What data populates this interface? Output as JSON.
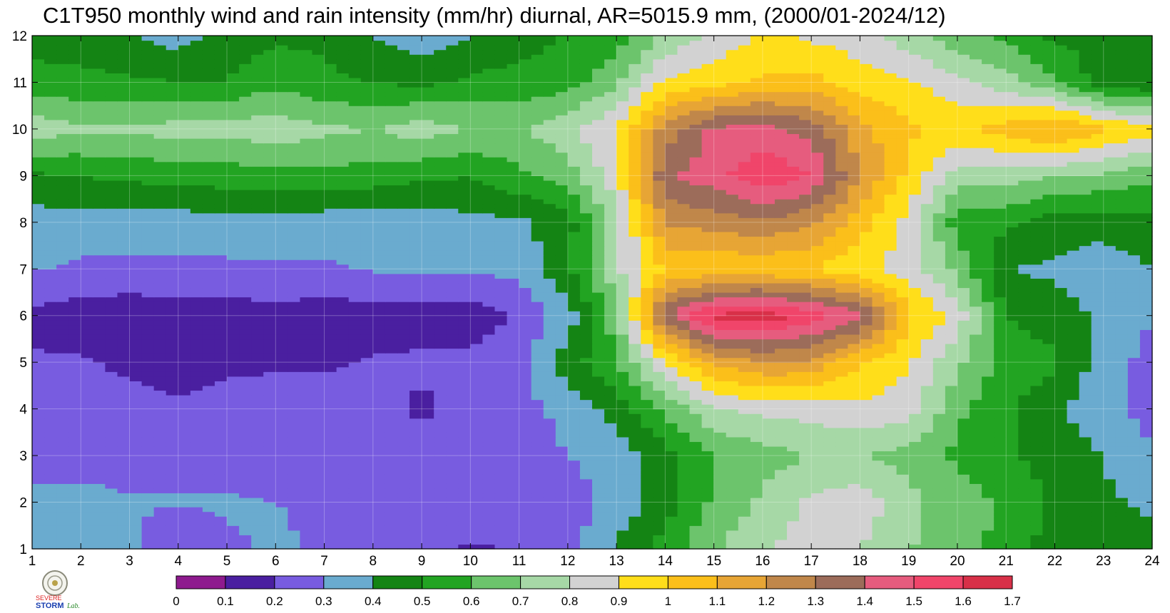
{
  "title": "C1T950 monthly wind and rain intensity (mm/hr) diurnal, AR=5015.9 mm, (2000/01-2024/12)",
  "logo": {
    "text_top": "SEVERE",
    "text_bottom": "STORM",
    "text_lab": "Lab."
  },
  "chart_data": {
    "type": "heatmap",
    "xlabel": "",
    "ylabel": "",
    "xlim": [
      1,
      24
    ],
    "ylim": [
      1,
      12
    ],
    "x_ticks": [
      "1",
      "2",
      "3",
      "4",
      "5",
      "6",
      "7",
      "8",
      "9",
      "10",
      "11",
      "12",
      "13",
      "14",
      "15",
      "16",
      "17",
      "18",
      "19",
      "20",
      "21",
      "22",
      "23",
      "24"
    ],
    "y_ticks": [
      "1",
      "2",
      "3",
      "4",
      "5",
      "6",
      "7",
      "8",
      "9",
      "10",
      "11",
      "12"
    ],
    "grid": true,
    "colorbar": {
      "labels": [
        "0",
        "0.1",
        "0.2",
        "0.3",
        "0.4",
        "0.5",
        "0.6",
        "0.7",
        "0.8",
        "0.9",
        "1",
        "1.1",
        "1.2",
        "1.3",
        "1.4",
        "1.5",
        "1.6",
        "1.7"
      ],
      "colors": [
        "#8e1a8e",
        "#4a1fa0",
        "#785ce0",
        "#6aabcf",
        "#148414",
        "#22a422",
        "#6cc46c",
        "#a6d8a6",
        "#d2d2d2",
        "#ffde1a",
        "#fbbf1a",
        "#e7a535",
        "#c0874a",
        "#9c6c5a",
        "#e65c7e",
        "#f0456a",
        "#d83048"
      ],
      "placement": "bottom"
    },
    "hours": [
      1,
      2,
      3,
      4,
      5,
      6,
      7,
      8,
      9,
      10,
      11,
      12,
      13,
      14,
      15,
      16,
      17,
      18,
      19,
      20,
      21,
      22,
      23,
      24
    ],
    "months": [
      1,
      2,
      3,
      4,
      5,
      6,
      7,
      8,
      9,
      10,
      11,
      12
    ],
    "z": [
      [
        0.34,
        0.34,
        0.32,
        0.19,
        0.29,
        0.31,
        0.29,
        0.28,
        0.22,
        0.19,
        0.21,
        0.25,
        0.42,
        0.55,
        0.69,
        0.78,
        0.86,
        0.8,
        0.71,
        0.62,
        0.58,
        0.44,
        0.42,
        0.44
      ],
      [
        0.33,
        0.33,
        0.31,
        0.31,
        0.31,
        0.3,
        0.29,
        0.29,
        0.26,
        0.26,
        0.22,
        0.26,
        0.33,
        0.45,
        0.62,
        0.72,
        0.82,
        0.86,
        0.73,
        0.65,
        0.58,
        0.48,
        0.42,
        0.38
      ],
      [
        0.26,
        0.26,
        0.26,
        0.25,
        0.26,
        0.26,
        0.25,
        0.24,
        0.24,
        0.24,
        0.26,
        0.3,
        0.34,
        0.46,
        0.6,
        0.66,
        0.7,
        0.7,
        0.66,
        0.58,
        0.52,
        0.46,
        0.4,
        0.3
      ],
      [
        0.25,
        0.24,
        0.24,
        0.22,
        0.24,
        0.24,
        0.24,
        0.24,
        0.18,
        0.24,
        0.26,
        0.33,
        0.44,
        0.62,
        0.79,
        0.83,
        0.84,
        0.88,
        0.85,
        0.62,
        0.52,
        0.42,
        0.33,
        0.27
      ],
      [
        0.21,
        0.21,
        0.18,
        0.14,
        0.18,
        0.19,
        0.19,
        0.21,
        0.22,
        0.22,
        0.28,
        0.45,
        0.6,
        0.89,
        1.12,
        1.2,
        1.18,
        1.0,
        0.91,
        0.72,
        0.56,
        0.52,
        0.34,
        0.27
      ],
      [
        0.18,
        0.14,
        0.14,
        0.15,
        0.15,
        0.16,
        0.14,
        0.15,
        0.15,
        0.15,
        0.21,
        0.35,
        0.65,
        1.38,
        1.62,
        1.66,
        1.56,
        1.44,
        1.02,
        0.86,
        0.5,
        0.45,
        0.38,
        0.3
      ],
      [
        0.31,
        0.28,
        0.27,
        0.28,
        0.28,
        0.29,
        0.29,
        0.31,
        0.31,
        0.31,
        0.33,
        0.48,
        0.78,
        1.0,
        1.02,
        1.01,
        1.0,
        0.92,
        0.86,
        0.67,
        0.4,
        0.38,
        0.34,
        0.4
      ],
      [
        0.35,
        0.36,
        0.36,
        0.35,
        0.36,
        0.35,
        0.34,
        0.34,
        0.34,
        0.37,
        0.38,
        0.46,
        0.74,
        1.22,
        1.24,
        1.28,
        1.22,
        1.05,
        0.86,
        0.55,
        0.52,
        0.45,
        0.44,
        0.48
      ],
      [
        0.48,
        0.5,
        0.52,
        0.54,
        0.55,
        0.56,
        0.58,
        0.55,
        0.52,
        0.5,
        0.58,
        0.64,
        0.88,
        1.38,
        1.46,
        1.58,
        1.5,
        1.2,
        0.97,
        0.75,
        0.75,
        0.7,
        0.68,
        0.62
      ],
      [
        0.76,
        0.72,
        0.72,
        0.74,
        0.74,
        0.76,
        0.72,
        0.7,
        0.75,
        0.7,
        0.68,
        0.78,
        0.9,
        1.24,
        1.42,
        1.44,
        1.36,
        1.14,
        1.02,
        0.98,
        1.04,
        1.13,
        1.02,
        0.96
      ],
      [
        0.55,
        0.53,
        0.52,
        0.5,
        0.5,
        0.58,
        0.52,
        0.5,
        0.48,
        0.52,
        0.55,
        0.55,
        0.68,
        0.92,
        0.96,
        1.02,
        1.04,
        0.95,
        0.92,
        0.82,
        0.74,
        0.62,
        0.44,
        0.4
      ],
      [
        0.45,
        0.44,
        0.4,
        0.36,
        0.45,
        0.48,
        0.48,
        0.4,
        0.33,
        0.4,
        0.44,
        0.52,
        0.55,
        0.72,
        0.82,
        0.92,
        0.88,
        0.84,
        0.74,
        0.64,
        0.57,
        0.48,
        0.46,
        0.43
      ]
    ]
  }
}
